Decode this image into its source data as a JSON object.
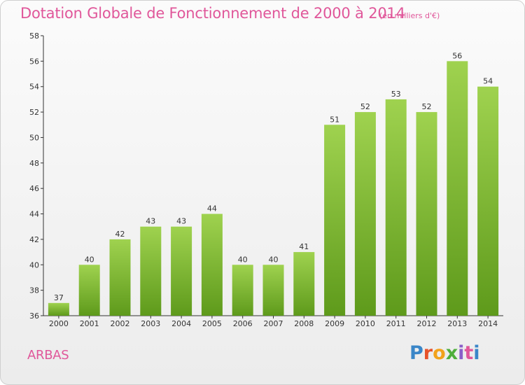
{
  "title": "Dotation Globale de Fonctionnement de 2000 à 2014",
  "unit": "(en milliers d'€)",
  "commune": "ARBAS",
  "logo_text": "Proxiti",
  "colors": {
    "title": "#e0579a",
    "bar_light": "#9fd24f",
    "bar_dark": "#5e9a1b",
    "axis": "#333333"
  },
  "chart_data": {
    "type": "bar",
    "title": "Dotation Globale de Fonctionnement de 2000 à 2014",
    "subtitle": "(en milliers d'€)",
    "xlabel": "",
    "ylabel": "",
    "categories": [
      "2000",
      "2001",
      "2002",
      "2003",
      "2004",
      "2005",
      "2006",
      "2007",
      "2008",
      "2009",
      "2010",
      "2011",
      "2012",
      "2013",
      "2014"
    ],
    "values": [
      37,
      40,
      42,
      43,
      43,
      44,
      40,
      40,
      41,
      51,
      52,
      53,
      52,
      56,
      54
    ],
    "ylim": [
      36,
      58
    ],
    "yticks": [
      36,
      38,
      40,
      42,
      44,
      46,
      48,
      50,
      52,
      54,
      56,
      58
    ],
    "grid": false,
    "data_labels": true
  }
}
